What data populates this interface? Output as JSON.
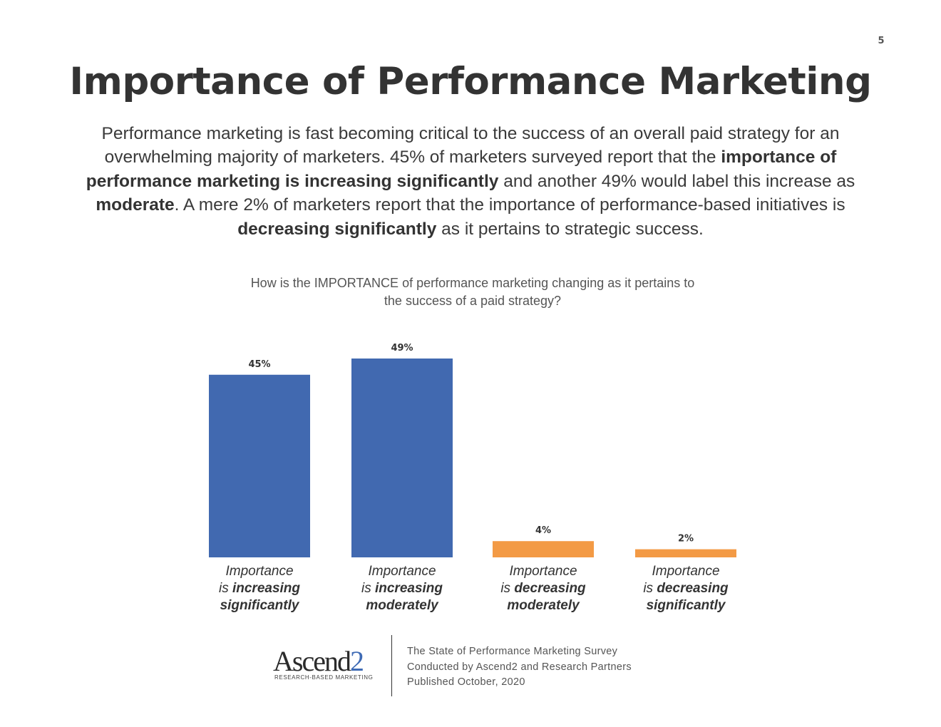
{
  "page_number": "5",
  "title": "Importance of Performance Marketing",
  "intro": {
    "segments": [
      {
        "text": "Performance marketing is fast becoming critical to the success of an overall paid strategy for an overwhelming majority of marketers. 45% of marketers surveyed report that the ",
        "bold": false
      },
      {
        "text": "importance of performance marketing is increasing significantly",
        "bold": true
      },
      {
        "text": " and another 49% would label this increase as ",
        "bold": false
      },
      {
        "text": "moderate",
        "bold": true
      },
      {
        "text": ". A mere 2% of marketers report that the importance of performance-based initiatives is ",
        "bold": false
      },
      {
        "text": "decreasing significantly",
        "bold": true
      },
      {
        "text": " as it pertains to strategic success.",
        "bold": false
      }
    ]
  },
  "question": {
    "line1": "How is the IMPORTANCE of performance marketing changing as it pertains to",
    "line2": "the success of a paid strategy?"
  },
  "chart_data": {
    "type": "bar",
    "categories": [
      "Importance is increasing significantly",
      "Importance is increasing moderately",
      "Importance is decreasing moderately",
      "Importance is decreasing significantly"
    ],
    "values": [
      45,
      49,
      4,
      2
    ],
    "value_labels": [
      "45%",
      "49%",
      "4%",
      "2%"
    ],
    "colors": [
      "#4169b0",
      "#4169b0",
      "#f39a45",
      "#f39a45"
    ],
    "category_labels": [
      {
        "line1": "Importance",
        "line2_prefix": "is ",
        "line2_bold": "increasing",
        "line3": "significantly"
      },
      {
        "line1": "Importance",
        "line2_prefix": "is ",
        "line2_bold": "increasing",
        "line3": "moderately"
      },
      {
        "line1": "Importance",
        "line2_prefix": "is ",
        "line2_bold": "decreasing",
        "line3": "moderately"
      },
      {
        "line1": "Importance",
        "line2_prefix": "is ",
        "line2_bold": "decreasing",
        "line3": "significantly"
      }
    ],
    "ylim": [
      0,
      49
    ],
    "grid": false,
    "legend": "none"
  },
  "footer": {
    "logo_text": "Ascend2",
    "logo_tagline": "RESEARCH-BASED MARKETING",
    "lines": [
      "The State of Performance Marketing Survey",
      "Conducted by Ascend2 and Research Partners",
      "Published October, 2020"
    ]
  }
}
